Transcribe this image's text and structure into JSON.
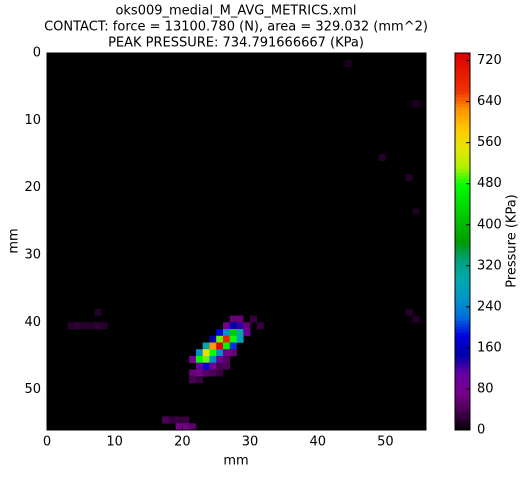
{
  "chart_data": {
    "type": "heatmap",
    "title_lines": [
      "oks009_medial_M_AVG_METRICS.xml",
      "CONTACT: force = 13100.780 (N), area = 329.032 (mm^2)",
      "PEAK PRESSURE: 734.791666667 (KPa)"
    ],
    "x_label": "mm",
    "y_label": "mm",
    "colorbar_label": "Pressure (KPa)",
    "colormap": "nipy_spectral",
    "background_value": 0,
    "xlim": [
      0,
      56
    ],
    "ylim": [
      56,
      0
    ],
    "xticks": [
      0,
      10,
      20,
      30,
      40,
      50
    ],
    "yticks": [
      0,
      10,
      20,
      30,
      40,
      50
    ],
    "clim": [
      0,
      734.791666667
    ],
    "cticks": [
      0,
      80,
      160,
      240,
      320,
      400,
      480,
      560,
      640,
      720
    ],
    "cells": [
      [
        27,
        39,
        60
      ],
      [
        28,
        39,
        60
      ],
      [
        30,
        39,
        30
      ],
      [
        26,
        40,
        80
      ],
      [
        27,
        40,
        150
      ],
      [
        28,
        40,
        130
      ],
      [
        29,
        40,
        60
      ],
      [
        31,
        40,
        30
      ],
      [
        25,
        41,
        180
      ],
      [
        26,
        41,
        250
      ],
      [
        27,
        41,
        420
      ],
      [
        28,
        41,
        300
      ],
      [
        29,
        41,
        100
      ],
      [
        24,
        42,
        150
      ],
      [
        25,
        42,
        500
      ],
      [
        26,
        42,
        680
      ],
      [
        27,
        42,
        480
      ],
      [
        28,
        42,
        280
      ],
      [
        23,
        43,
        300
      ],
      [
        24,
        43,
        620
      ],
      [
        25,
        43,
        734.79
      ],
      [
        26,
        43,
        470
      ],
      [
        27,
        43,
        200
      ],
      [
        22,
        44,
        250
      ],
      [
        23,
        44,
        560
      ],
      [
        24,
        44,
        480
      ],
      [
        25,
        44,
        250
      ],
      [
        26,
        44,
        80
      ],
      [
        27,
        44,
        60
      ],
      [
        21,
        45,
        80
      ],
      [
        22,
        45,
        470
      ],
      [
        23,
        45,
        500
      ],
      [
        24,
        45,
        250
      ],
      [
        25,
        45,
        100
      ],
      [
        26,
        45,
        50
      ],
      [
        22,
        46,
        100
      ],
      [
        23,
        46,
        180
      ],
      [
        24,
        46,
        80
      ],
      [
        25,
        46,
        40
      ],
      [
        26,
        46,
        40
      ],
      [
        21,
        47,
        60
      ],
      [
        22,
        47,
        70
      ],
      [
        23,
        47,
        50
      ],
      [
        24,
        47,
        40
      ],
      [
        25,
        47,
        30
      ],
      [
        21,
        48,
        40
      ],
      [
        22,
        48,
        30
      ],
      [
        17,
        54,
        40
      ],
      [
        18,
        54,
        30
      ],
      [
        19,
        54,
        30
      ],
      [
        20,
        54,
        30
      ],
      [
        19,
        55,
        70
      ],
      [
        20,
        55,
        70
      ],
      [
        21,
        55,
        50
      ],
      [
        3,
        40,
        20
      ],
      [
        4,
        40,
        25
      ],
      [
        5,
        40,
        20
      ],
      [
        6,
        40,
        20
      ],
      [
        7,
        40,
        25
      ],
      [
        8,
        40,
        20
      ],
      [
        7,
        38,
        20
      ],
      [
        44,
        1,
        15
      ],
      [
        54,
        7,
        15
      ],
      [
        49,
        15,
        20
      ],
      [
        53,
        18,
        20
      ],
      [
        54,
        23,
        15
      ],
      [
        53,
        38,
        20
      ],
      [
        54,
        39,
        20
      ]
    ]
  }
}
